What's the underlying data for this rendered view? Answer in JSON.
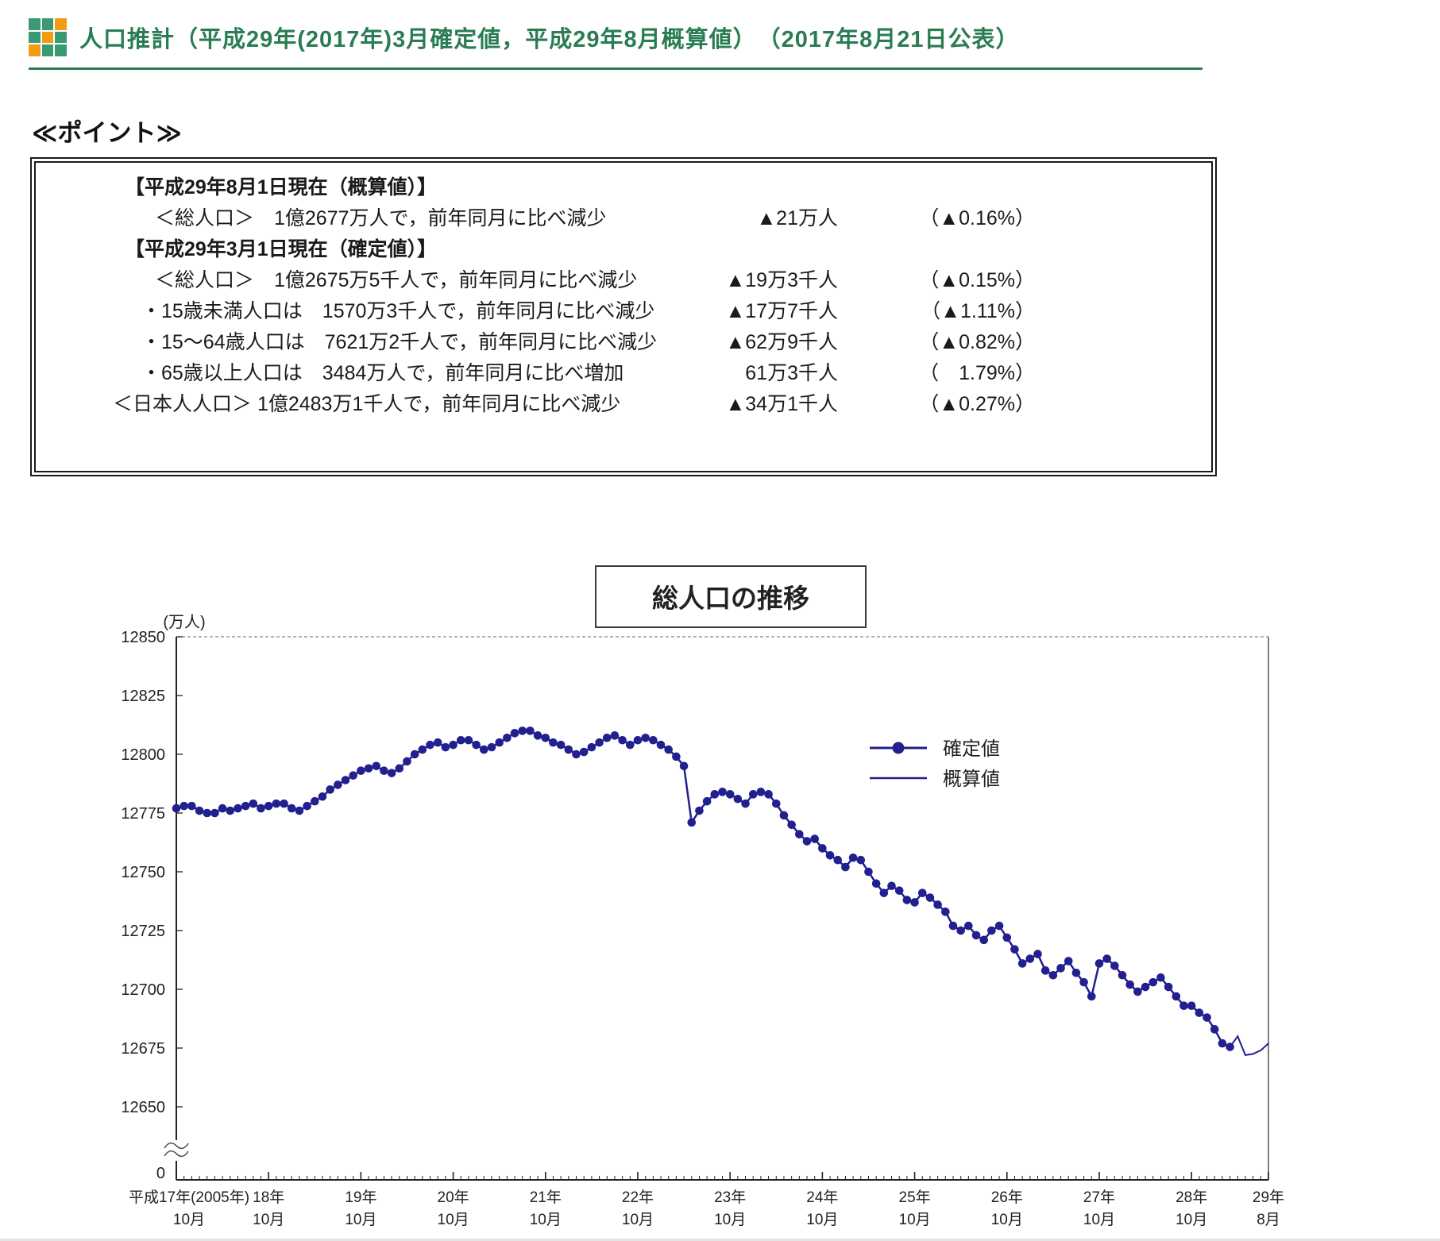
{
  "header": {
    "title": "人口推計（平成29年(2017年)3月確定値，平成29年8月概算値）　（2017年8月21日公表）",
    "accent_color": "#2a7d52",
    "icon_palette": {
      "g": "#3a9b72",
      "o": "#f29b13"
    },
    "icon_grid": [
      [
        "g",
        "g",
        "o"
      ],
      [
        "g",
        "o",
        "g"
      ],
      [
        "o",
        "g",
        "g"
      ]
    ]
  },
  "points": {
    "heading": "≪ポイント≫",
    "rows": [
      {
        "type": "header",
        "text": "【平成29年8月1日現在（概算値）】"
      },
      {
        "type": "item",
        "level": 1,
        "text": "＜総人口＞　1億2677万人で，前年同月に比べ減少",
        "amount": "▲21万人",
        "pct": "（▲0.16%）"
      },
      {
        "type": "header",
        "text": "【平成29年3月1日現在（確定値）】"
      },
      {
        "type": "item",
        "level": 1,
        "text": "＜総人口＞　1億2675万5千人で，前年同月に比べ減少",
        "amount": "▲19万3千人",
        "pct": "（▲0.15%）"
      },
      {
        "type": "item",
        "level": 2,
        "text": "・15歳未満人口は　1570万3千人で，前年同月に比べ減少",
        "amount": "▲17万7千人",
        "pct": "（▲1.11%）"
      },
      {
        "type": "item",
        "level": 2,
        "text": "・15～64歳人口は　7621万2千人で，前年同月に比べ減少",
        "amount": "▲62万9千人",
        "pct": "（▲0.82%）"
      },
      {
        "type": "item",
        "level": 2,
        "text": "・65歳以上人口は　3484万人で，前年同月に比べ増加",
        "amount": "61万3千人",
        "pct": "（　1.79%）"
      },
      {
        "type": "item",
        "level": 0,
        "text": "＜日本人人口＞ 1億2483万1千人で，前年同月に比べ減少",
        "amount": "▲34万1千人",
        "pct": "（▲0.27%）"
      }
    ]
  },
  "chart_data": {
    "type": "line",
    "title": "総人口の推移",
    "unit_label": "(万人)",
    "line_color": "#221f8e",
    "axis_break": true,
    "grid": false,
    "legend_position": "upper-right-inside",
    "ylim_value_zone": [
      12650,
      12850
    ],
    "y_ticks": [
      12850,
      12825,
      12800,
      12775,
      12750,
      12725,
      12700,
      12675,
      12650
    ],
    "y_zero_label": "0",
    "x_start_month": "2005-10",
    "x_end_month": "2017-08",
    "x_major_ticks": [
      {
        "i": 0,
        "l1": "平成17年(2005年)",
        "l2": "10月"
      },
      {
        "i": 12,
        "l1": "18年",
        "l2": "10月"
      },
      {
        "i": 24,
        "l1": "19年",
        "l2": "10月"
      },
      {
        "i": 36,
        "l1": "20年",
        "l2": "10月"
      },
      {
        "i": 48,
        "l1": "21年",
        "l2": "10月"
      },
      {
        "i": 60,
        "l1": "22年",
        "l2": "10月"
      },
      {
        "i": 72,
        "l1": "23年",
        "l2": "10月"
      },
      {
        "i": 84,
        "l1": "24年",
        "l2": "10月"
      },
      {
        "i": 96,
        "l1": "25年",
        "l2": "10月"
      },
      {
        "i": 108,
        "l1": "26年",
        "l2": "10月"
      },
      {
        "i": 120,
        "l1": "27年",
        "l2": "10月"
      },
      {
        "i": 132,
        "l1": "28年",
        "l2": "10月"
      },
      {
        "i": 142,
        "l1": "29年",
        "l2": "8月"
      }
    ],
    "series": [
      {
        "name": "確定値",
        "marker": true,
        "start_index": 0,
        "values": [
          12777,
          12778,
          12778,
          12776,
          12775,
          12775,
          12777,
          12776,
          12777,
          12778,
          12779,
          12777,
          12778,
          12779,
          12779,
          12777,
          12776,
          12778,
          12780,
          12782,
          12785,
          12787,
          12789,
          12791,
          12793,
          12794,
          12795,
          12793,
          12792,
          12794,
          12797,
          12800,
          12802,
          12804,
          12805,
          12803,
          12804,
          12806,
          12806,
          12804,
          12802,
          12803,
          12805,
          12807,
          12809,
          12810,
          12810,
          12808,
          12807,
          12805,
          12804,
          12802,
          12800,
          12801,
          12803,
          12805,
          12807,
          12808,
          12806,
          12804,
          12806,
          12807,
          12806,
          12804,
          12802,
          12799,
          12795,
          12771,
          12776,
          12780,
          12783,
          12784,
          12783,
          12781,
          12779,
          12783,
          12784,
          12783,
          12779,
          12774,
          12770,
          12766,
          12763,
          12764,
          12760,
          12757,
          12755,
          12752,
          12756,
          12755,
          12750,
          12745,
          12741,
          12744,
          12742,
          12738,
          12737,
          12741,
          12739,
          12736,
          12733,
          12727,
          12725,
          12727,
          12723,
          12721,
          12725,
          12727,
          12722,
          12717,
          12711,
          12713,
          12715,
          12708,
          12706,
          12709,
          12712,
          12707,
          12703,
          12697,
          12711,
          12713,
          12710,
          12706,
          12702,
          12699,
          12701,
          12703,
          12705,
          12701,
          12697,
          12693,
          12693,
          12690,
          12688,
          12683,
          12677,
          12675.5
        ]
      },
      {
        "name": "概算値",
        "marker": false,
        "start_index": 137,
        "values": [
          12675.5,
          12680,
          12672,
          12672.5,
          12674,
          12677
        ]
      }
    ]
  }
}
